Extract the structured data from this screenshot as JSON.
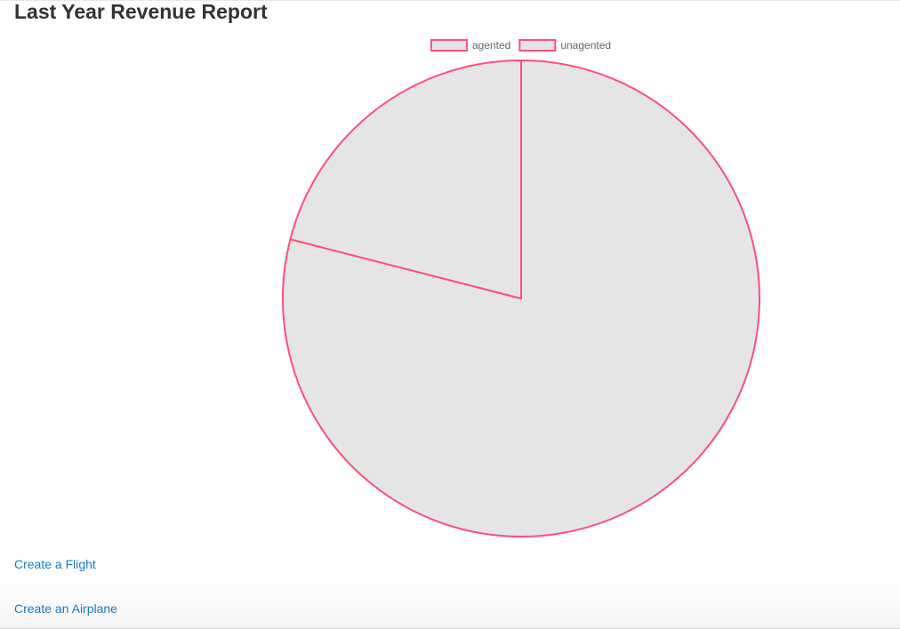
{
  "page": {
    "title": "Last Year Revenue Report"
  },
  "chart_data": {
    "type": "pie",
    "categories": [
      "agented",
      "unagented"
    ],
    "series": [
      {
        "values": [
          0.79,
          0.21
        ]
      }
    ],
    "legend": {
      "position": "top",
      "items": [
        "agented",
        "unagented"
      ]
    },
    "colors": {
      "fill": "#e5e5e5",
      "border": "#ff4f7b"
    }
  },
  "links": {
    "create_flight": "Create a Flight",
    "create_airplane": "Create an Airplane"
  }
}
